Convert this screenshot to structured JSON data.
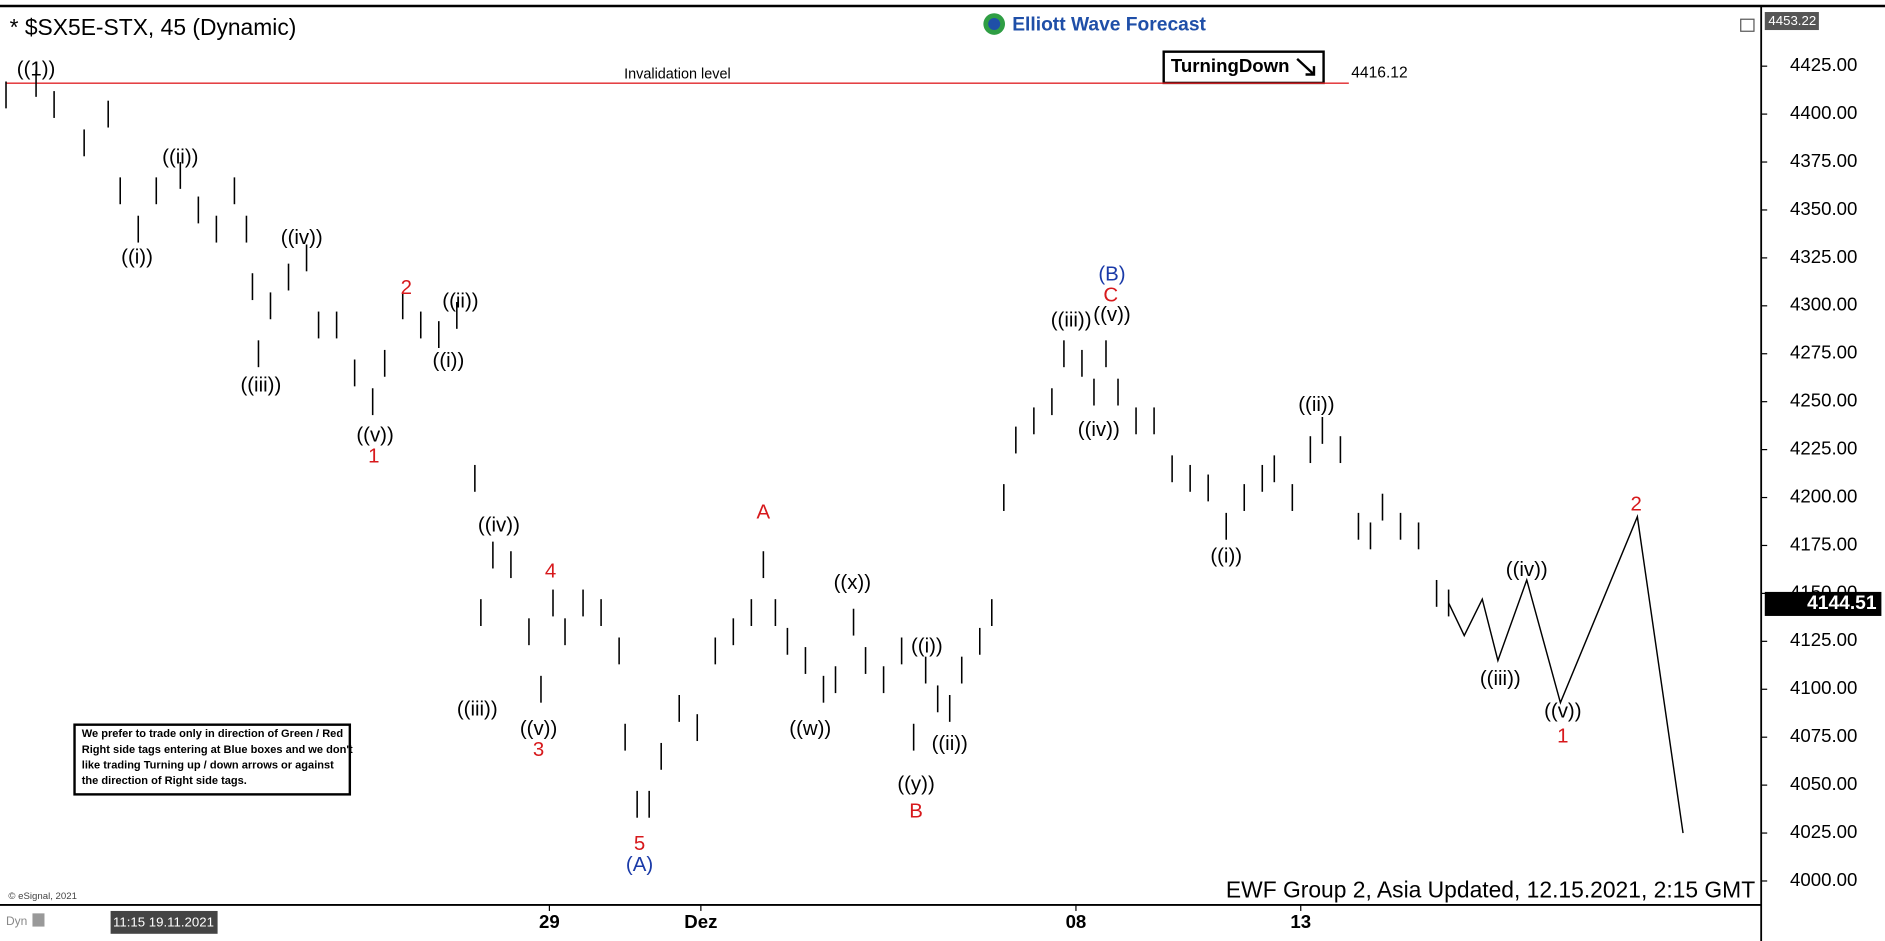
{
  "header": {
    "title": "* $SX5E-STX, 45 (Dynamic)",
    "logo": "Elliott Wave Forecast",
    "signal": "TurningDown",
    "top_price": "4453.22"
  },
  "note": [
    "We prefer to trade only in direction of Green / Red",
    "Right side tags entering at Blue boxes and we don't",
    "like trading Turning up / down arrows or against",
    "the direction of Right side tags."
  ],
  "copyright": "© eSignal, 2021",
  "footer": "EWF Group 2, Asia Updated, 12.15.2021, 2:15 GMT",
  "cursor_time": "11:15 19.11.2021",
  "dyn": "Dyn",
  "chart_data": {
    "type": "ohlc",
    "xlim": [
      1,
      293
    ],
    "ylim": [
      3987.5,
      4454.5
    ],
    "xticks": [
      {
        "value": 91.4,
        "label": "29"
      },
      {
        "value": 116.6,
        "label": "Dez"
      },
      {
        "value": 179,
        "label": "08"
      },
      {
        "value": 216.4,
        "label": "13"
      }
    ],
    "yticks": [
      {
        "value": 4000,
        "label": "4000.00"
      },
      {
        "value": 4025,
        "label": "4025.00"
      },
      {
        "value": 4050,
        "label": "4050.00"
      },
      {
        "value": 4075,
        "label": "4075.00"
      },
      {
        "value": 4100,
        "label": "4100.00"
      },
      {
        "value": 4125,
        "label": "4125.00"
      },
      {
        "value": 4150,
        "label": "4150.00"
      },
      {
        "value": 4175,
        "label": "4175.00"
      },
      {
        "value": 4200,
        "label": "4200.00"
      },
      {
        "value": 4225,
        "label": "4225.00"
      },
      {
        "value": 4250,
        "label": "4250.00"
      },
      {
        "value": 4275,
        "label": "4275.00"
      },
      {
        "value": 4300,
        "label": "4300.00"
      },
      {
        "value": 4325,
        "label": "4325.00"
      },
      {
        "value": 4350,
        "label": "4350.00"
      },
      {
        "value": 4375,
        "label": "4375.00"
      },
      {
        "value": 4400,
        "label": "4400.00"
      },
      {
        "value": 4425,
        "label": "4425.00"
      }
    ],
    "bar_color": "#000000",
    "x": [
      1,
      6,
      9,
      14,
      18,
      20,
      23,
      26,
      30,
      33,
      36,
      39,
      41,
      42,
      43,
      45,
      48,
      51,
      53,
      56,
      59,
      62,
      64,
      67,
      70,
      73,
      76,
      79,
      80,
      82,
      85,
      88,
      90,
      92,
      94,
      97,
      100,
      103,
      104,
      106,
      108,
      110,
      113,
      116,
      119,
      122,
      125,
      127,
      129,
      131,
      134,
      137,
      139,
      142,
      144,
      147,
      150,
      152,
      154,
      156,
      158,
      160,
      163,
      165,
      167,
      169,
      172,
      175,
      177,
      180,
      182,
      184,
      186,
      189,
      192,
      195,
      198,
      201,
      204,
      207,
      210,
      212,
      215,
      218,
      220,
      223,
      226,
      228,
      230,
      233,
      236,
      239,
      241
    ],
    "high": [
      4417,
      4423,
      4412,
      4392,
      4407,
      4367,
      4347,
      4367,
      4375,
      4357,
      4347,
      4367,
      4347,
      4317,
      4282,
      4307,
      4322,
      4332,
      4297,
      4297,
      4272,
      4257,
      4277,
      4307,
      4297,
      4292,
      4302,
      4217,
      4147,
      4177,
      4172,
      4137,
      4107,
      4152,
      4137,
      4152,
      4147,
      4127,
      4082,
      4047,
      4047,
      4072,
      4097,
      4087,
      4127,
      4137,
      4147,
      4172,
      4147,
      4132,
      4122,
      4107,
      4112,
      4142,
      4122,
      4112,
      4127,
      4082,
      4117,
      4102,
      4097,
      4117,
      4132,
      4147,
      4207,
      4237,
      4247,
      4257,
      4282,
      4277,
      4262,
      4282,
      4262,
      4247,
      4247,
      4222,
      4217,
      4212,
      4192,
      4207,
      4217,
      4222,
      4207,
      4232,
      4242,
      4232,
      4192,
      4187,
      4202,
      4192,
      4187,
      4157,
      4152
    ],
    "low": [
      4403,
      4409,
      4398,
      4378,
      4393,
      4353,
      4333,
      4353,
      4361,
      4343,
      4333,
      4353,
      4333,
      4303,
      4268,
      4293,
      4308,
      4318,
      4283,
      4283,
      4258,
      4243,
      4263,
      4293,
      4283,
      4278,
      4288,
      4203,
      4133,
      4163,
      4158,
      4123,
      4093,
      4138,
      4123,
      4138,
      4133,
      4113,
      4068,
      4033,
      4033,
      4058,
      4083,
      4073,
      4113,
      4123,
      4133,
      4158,
      4133,
      4118,
      4108,
      4093,
      4098,
      4128,
      4108,
      4098,
      4113,
      4068,
      4103,
      4088,
      4083,
      4103,
      4118,
      4133,
      4193,
      4223,
      4233,
      4243,
      4268,
      4263,
      4248,
      4268,
      4248,
      4233,
      4233,
      4208,
      4203,
      4198,
      4178,
      4193,
      4203,
      4208,
      4193,
      4218,
      4228,
      4218,
      4178,
      4173,
      4188,
      4178,
      4173,
      4143,
      4138
    ],
    "projection": {
      "x": [
        241,
        243.6,
        246.6,
        249.2,
        254,
        259.6,
        272.4,
        280
      ],
      "values": [
        4145,
        4128,
        4147,
        4115,
        4157,
        4093,
        4190,
        4025
      ],
      "color": "#000000"
    },
    "invalidation": {
      "label": "Invalidation level",
      "value": 4416.12,
      "value_label": "4416.12",
      "x": [
        1,
        224.4
      ],
      "color": "#e0262a"
    },
    "last_price": 4144.51,
    "labels": [
      {
        "text": "((1))",
        "x": 6,
        "price": 4423,
        "color": "#000000"
      },
      {
        "text": "((ii))",
        "x": 30,
        "price": 4377,
        "color": "#000000"
      },
      {
        "text": "((i))",
        "x": 22.8,
        "price": 4325,
        "color": "#000000"
      },
      {
        "text": "((iv))",
        "x": 50.2,
        "price": 4335,
        "color": "#000000"
      },
      {
        "text": "((iii))",
        "x": 43.4,
        "price": 4258,
        "color": "#000000"
      },
      {
        "text": "2",
        "x": 67.6,
        "price": 4309,
        "color": "#d7191c"
      },
      {
        "text": "((ii))",
        "x": 76.6,
        "price": 4302,
        "color": "#000000"
      },
      {
        "text": "((i))",
        "x": 74.6,
        "price": 4271,
        "color": "#000000"
      },
      {
        "text": "((v))",
        "x": 62.4,
        "price": 4232,
        "color": "#000000"
      },
      {
        "text": "1",
        "x": 62.2,
        "price": 4221,
        "color": "#d7191c"
      },
      {
        "text": "((iv))",
        "x": 83,
        "price": 4185,
        "color": "#000000"
      },
      {
        "text": "4",
        "x": 91.6,
        "price": 4161,
        "color": "#d7191c"
      },
      {
        "text": "((iii))",
        "x": 79.4,
        "price": 4089,
        "color": "#000000"
      },
      {
        "text": "((v))",
        "x": 89.6,
        "price": 4079,
        "color": "#000000"
      },
      {
        "text": "3",
        "x": 89.6,
        "price": 4068,
        "color": "#d7191c"
      },
      {
        "text": "5",
        "x": 106.4,
        "price": 4019,
        "color": "#d7191c"
      },
      {
        "text": "(A)",
        "x": 106.4,
        "price": 4008,
        "color": "#1a3aa8"
      },
      {
        "text": "A",
        "x": 127,
        "price": 4192,
        "color": "#d7191c"
      },
      {
        "text": "((x))",
        "x": 141.8,
        "price": 4155,
        "color": "#000000"
      },
      {
        "text": "((w))",
        "x": 134.8,
        "price": 4079,
        "color": "#000000"
      },
      {
        "text": "((i))",
        "x": 154.2,
        "price": 4122,
        "color": "#000000"
      },
      {
        "text": "((ii))",
        "x": 158,
        "price": 4071,
        "color": "#000000"
      },
      {
        "text": "((y))",
        "x": 152.4,
        "price": 4050,
        "color": "#000000"
      },
      {
        "text": "B",
        "x": 152.4,
        "price": 4036,
        "color": "#d7191c"
      },
      {
        "text": "(B)",
        "x": 185,
        "price": 4316,
        "color": "#1a3aa8"
      },
      {
        "text": "C",
        "x": 184.8,
        "price": 4305,
        "color": "#d7191c"
      },
      {
        "text": "((iii))",
        "x": 178.2,
        "price": 4292,
        "color": "#000000"
      },
      {
        "text": "((v))",
        "x": 185,
        "price": 4295,
        "color": "#000000"
      },
      {
        "text": "((iv))",
        "x": 182.8,
        "price": 4235,
        "color": "#000000"
      },
      {
        "text": "((ii))",
        "x": 219,
        "price": 4248,
        "color": "#000000"
      },
      {
        "text": "((i))",
        "x": 204,
        "price": 4169,
        "color": "#000000"
      },
      {
        "text": "((iv))",
        "x": 254,
        "price": 4162,
        "color": "#000000"
      },
      {
        "text": "((iii))",
        "x": 249.6,
        "price": 4105,
        "color": "#000000"
      },
      {
        "text": "((v))",
        "x": 260,
        "price": 4088,
        "color": "#000000"
      },
      {
        "text": "1",
        "x": 260,
        "price": 4075,
        "color": "#d7191c"
      },
      {
        "text": "2",
        "x": 272.2,
        "price": 4196,
        "color": "#d7191c"
      }
    ]
  }
}
